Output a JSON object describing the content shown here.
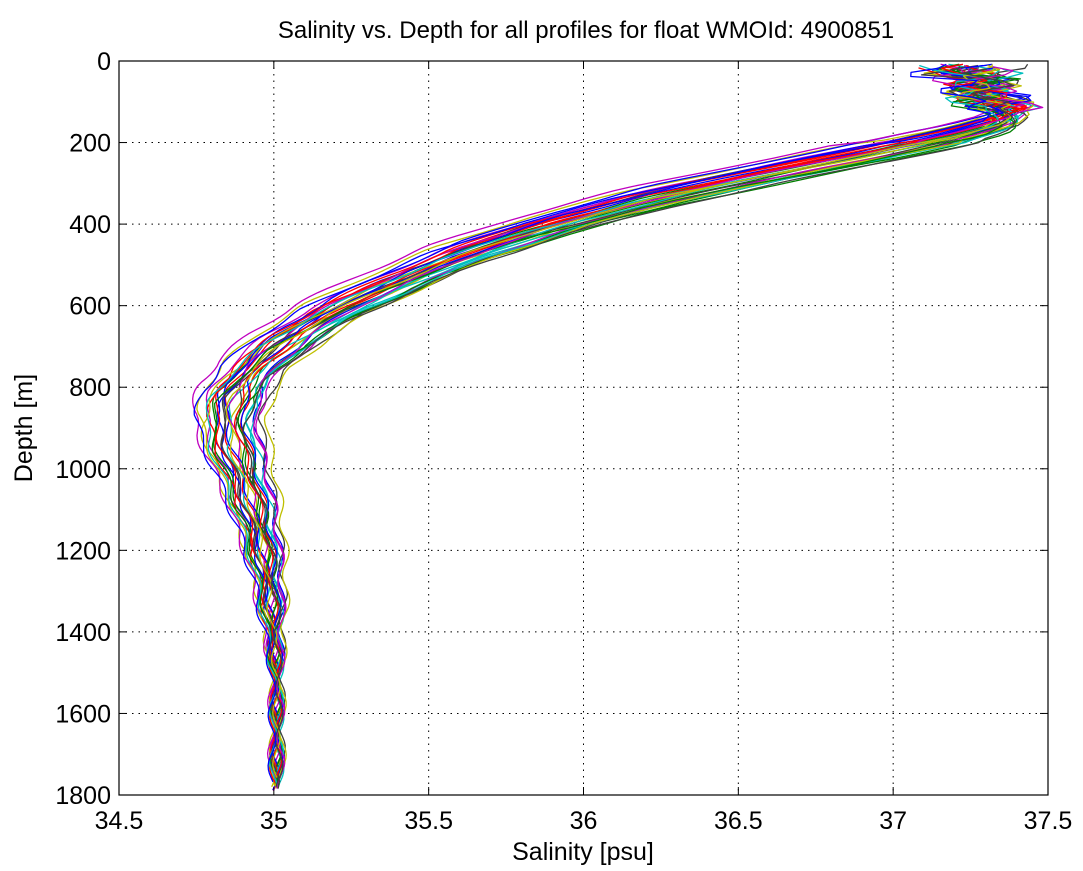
{
  "chart_data": {
    "type": "line",
    "title": "Salinity vs. Depth for all profiles for float WMOId: 4900851",
    "xlabel": "Salinity [psu]",
    "ylabel": "Depth [m]",
    "xlim": [
      34.5,
      37.5
    ],
    "ylim": [
      0,
      1800
    ],
    "y_reversed": true,
    "grid": true,
    "legend": "none",
    "x_ticks": [
      34.5,
      35,
      35.5,
      36,
      36.5,
      37,
      37.5
    ],
    "x_tick_labels": [
      "34.5",
      "35",
      "35.5",
      "36",
      "36.5",
      "37",
      "37.5"
    ],
    "y_ticks": [
      0,
      200,
      400,
      600,
      800,
      1000,
      1200,
      1400,
      1600,
      1800
    ],
    "y_tick_labels": [
      "0",
      "200",
      "400",
      "600",
      "800",
      "1000",
      "1200",
      "1400",
      "1600",
      "1800"
    ],
    "series_colors": [
      "#0000ff",
      "#008000",
      "#ff0000",
      "#00bfbf",
      "#bf00bf",
      "#bfbf00",
      "#404040"
    ],
    "mean_profile": {
      "x": [
        37.33,
        37.31,
        37.28,
        37.26,
        37.3,
        37.36,
        37.38,
        37.34,
        37.2,
        36.95,
        36.62,
        36.25,
        35.9,
        35.62,
        35.4,
        35.2,
        35.05,
        34.94,
        34.88,
        34.86,
        34.87,
        34.9,
        34.94,
        34.97,
        34.99,
        35.0,
        35.01,
        35.01,
        35.01
      ],
      "y": [
        10,
        30,
        50,
        70,
        90,
        110,
        130,
        150,
        180,
        220,
        270,
        330,
        400,
        470,
        540,
        610,
        680,
        750,
        810,
        870,
        930,
        1000,
        1100,
        1200,
        1300,
        1400,
        1500,
        1600,
        1780
      ]
    },
    "profiles": [
      {
        "dx": -0.05,
        "dy": 0,
        "max_depth": 1790
      },
      {
        "dx": 0.03,
        "dy": 5,
        "max_depth": 1780
      },
      {
        "dx": -0.02,
        "dy": -10,
        "max_depth": 1770
      },
      {
        "dx": 0.06,
        "dy": 10,
        "max_depth": 1760
      },
      {
        "dx": -0.08,
        "dy": -5,
        "max_depth": 1790
      },
      {
        "dx": 0.01,
        "dy": 15,
        "max_depth": 1780
      },
      {
        "dx": -0.03,
        "dy": 20,
        "max_depth": 1640
      },
      {
        "dx": 0.08,
        "dy": -15,
        "max_depth": 1760
      },
      {
        "dx": -0.06,
        "dy": 8,
        "max_depth": 1780
      },
      {
        "dx": 0.04,
        "dy": -8,
        "max_depth": 1590
      },
      {
        "dx": -0.01,
        "dy": 25,
        "max_depth": 1770
      },
      {
        "dx": 0.09,
        "dy": 3,
        "max_depth": 1780
      },
      {
        "dx": -0.1,
        "dy": -12,
        "max_depth": 1790
      },
      {
        "dx": 0.02,
        "dy": -20,
        "max_depth": 1760
      },
      {
        "dx": -0.04,
        "dy": 12,
        "max_depth": 1780
      },
      {
        "dx": 0.05,
        "dy": 18,
        "max_depth": 1770
      },
      {
        "dx": -0.07,
        "dy": 4,
        "max_depth": 1780
      },
      {
        "dx": 0.07,
        "dy": -3,
        "max_depth": 1790
      },
      {
        "dx": 0.0,
        "dy": -18,
        "max_depth": 1760
      },
      {
        "dx": -0.09,
        "dy": 22,
        "max_depth": 1780
      },
      {
        "dx": 0.1,
        "dy": 7,
        "max_depth": 1770
      },
      {
        "dx": -0.02,
        "dy": -25,
        "max_depth": 1780
      },
      {
        "dx": 0.03,
        "dy": 28,
        "max_depth": 1790
      },
      {
        "dx": -0.05,
        "dy": -8,
        "max_depth": 1760
      },
      {
        "dx": 0.06,
        "dy": 14,
        "max_depth": 1780
      },
      {
        "dx": -0.12,
        "dy": -16,
        "max_depth": 1770
      },
      {
        "dx": 0.12,
        "dy": 2,
        "max_depth": 1780
      },
      {
        "dx": -0.03,
        "dy": 9,
        "max_depth": 1790
      },
      {
        "dx": 0.04,
        "dy": -22,
        "max_depth": 1760
      },
      {
        "dx": -0.06,
        "dy": 30,
        "max_depth": 1780
      },
      {
        "dx": 0.02,
        "dy": -6,
        "max_depth": 1770
      },
      {
        "dx": -0.08,
        "dy": 16,
        "max_depth": 1780
      },
      {
        "dx": 0.08,
        "dy": -12,
        "max_depth": 1790
      },
      {
        "dx": -0.01,
        "dy": 6,
        "max_depth": 1760
      },
      {
        "dx": 0.05,
        "dy": 24,
        "max_depth": 1780
      },
      {
        "dx": -0.11,
        "dy": 0,
        "max_depth": 1770
      }
    ]
  }
}
